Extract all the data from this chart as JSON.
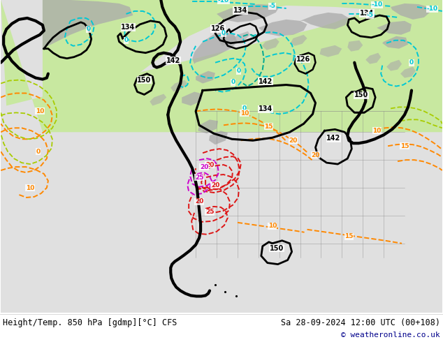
{
  "title_left": "Height/Temp. 850 hPa [gdmp][°C] CFS",
  "title_right": "Sa 28-09-2024 12:00 UTC (00+108)",
  "copyright": "© weatheronline.co.uk",
  "figsize": [
    6.34,
    4.9
  ],
  "dpi": 100,
  "land_green": "#c8e8a0",
  "land_gray": "#aaaaaa",
  "bg_gray": "#d8d8d8",
  "ocean_color": "#e8e8e8",
  "footer_bg": "#ffffff",
  "text_color": "#000000",
  "copyright_color": "#00008b",
  "cyan": "#00bcd4",
  "teal": "#009090",
  "orange": "#ff8800",
  "red": "#dd2020",
  "magenta": "#cc00cc",
  "ygreen": "#aacc00",
  "black": "#000000"
}
